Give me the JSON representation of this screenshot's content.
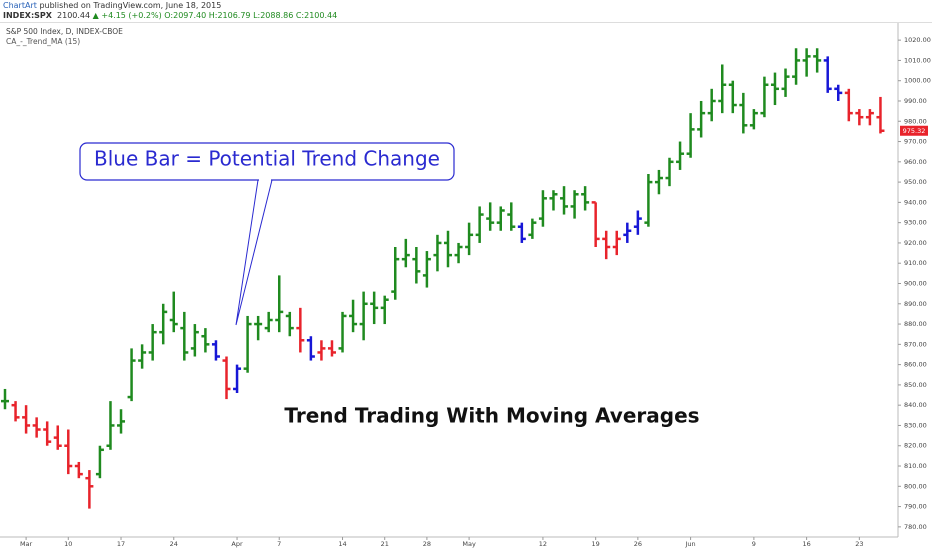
{
  "header": {
    "author": "ChartArt",
    "published": "published on TradingView.com, June 18, 2015",
    "symbol": "INDEX:SPX",
    "last": "2100.44",
    "change": "▲ +4.15 (+0.2%)",
    "ohlc": "O:2097.40 H:2106.79 L:2088.86 C:2100.44"
  },
  "chart_data": {
    "type": "ohlc",
    "subtitle": "S&P 500 Index, D, INDEX-CBOE",
    "indicator": "CA_-_Trend_MA (15)",
    "callout": "Blue Bar = Potential Trend Change",
    "annotation": "Trend Trading With Moving Averages",
    "categories": [
      null,
      null,
      "Mar",
      null,
      null,
      null,
      "10",
      null,
      null,
      null,
      null,
      "17",
      null,
      null,
      null,
      null,
      "24",
      null,
      null,
      null,
      null,
      null,
      "Apr",
      null,
      null,
      null,
      "7",
      null,
      null,
      null,
      null,
      null,
      "14",
      null,
      null,
      null,
      "21",
      null,
      null,
      null,
      "28",
      null,
      null,
      null,
      "May",
      null,
      null,
      null,
      null,
      null,
      null,
      "12",
      null,
      null,
      null,
      null,
      "19",
      null,
      null,
      null,
      "26",
      null,
      null,
      null,
      null,
      "Jun",
      null,
      null,
      null,
      null,
      null,
      "9",
      null,
      null,
      null,
      null,
      "16",
      null,
      null,
      null,
      null,
      "23",
      null,
      null
    ],
    "open": [
      842,
      840,
      834,
      830,
      828,
      824,
      820,
      810,
      804,
      806,
      820,
      830,
      844,
      862,
      866,
      876,
      882,
      878,
      868,
      874,
      870,
      862,
      848,
      858,
      880,
      878,
      882,
      884,
      878,
      872,
      866,
      868,
      868,
      884,
      880,
      890,
      888,
      896,
      912,
      912,
      904,
      914,
      920,
      914,
      918,
      924,
      932,
      930,
      934,
      928,
      924,
      932,
      942,
      942,
      938,
      944,
      940,
      922,
      918,
      924,
      928,
      930,
      950,
      952,
      960,
      964,
      976,
      984,
      990,
      998,
      988,
      978,
      984,
      998,
      996,
      1002,
      1010,
      1012,
      1010,
      996,
      994,
      984,
      982,
      982
    ],
    "high": [
      848,
      842,
      840,
      834,
      832,
      830,
      828,
      812,
      808,
      820,
      842,
      838,
      868,
      870,
      880,
      890,
      896,
      886,
      880,
      878,
      872,
      864,
      860,
      884,
      884,
      886,
      904,
      886,
      888,
      874,
      872,
      872,
      886,
      892,
      896,
      896,
      894,
      918,
      922,
      918,
      916,
      924,
      926,
      920,
      930,
      938,
      940,
      938,
      940,
      930,
      932,
      946,
      946,
      948,
      946,
      948,
      940,
      926,
      926,
      930,
      936,
      954,
      956,
      962,
      970,
      984,
      990,
      996,
      1008,
      1000,
      994,
      986,
      1002,
      1004,
      1006,
      1016,
      1016,
      1016,
      1012,
      998,
      996,
      986,
      986,
      992
    ],
    "low": [
      838,
      832,
      826,
      824,
      820,
      818,
      806,
      804,
      789,
      804,
      818,
      826,
      842,
      858,
      862,
      870,
      876,
      862,
      864,
      866,
      862,
      843,
      846,
      856,
      872,
      876,
      876,
      874,
      866,
      862,
      862,
      864,
      866,
      876,
      872,
      880,
      880,
      892,
      908,
      900,
      898,
      906,
      908,
      910,
      914,
      920,
      926,
      926,
      926,
      920,
      922,
      928,
      936,
      934,
      932,
      936,
      918,
      912,
      914,
      920,
      924,
      928,
      944,
      948,
      956,
      962,
      972,
      980,
      984,
      984,
      974,
      976,
      982,
      988,
      992,
      998,
      1002,
      1004,
      994,
      990,
      980,
      978,
      978,
      974
    ],
    "close": [
      842,
      834,
      830,
      828,
      822,
      820,
      810,
      806,
      800,
      818,
      830,
      832,
      862,
      866,
      876,
      886,
      880,
      866,
      876,
      870,
      864,
      848,
      858,
      880,
      880,
      882,
      886,
      878,
      872,
      864,
      868,
      866,
      884,
      880,
      890,
      888,
      892,
      912,
      914,
      906,
      912,
      920,
      914,
      918,
      924,
      934,
      930,
      936,
      928,
      922,
      930,
      942,
      944,
      938,
      944,
      940,
      922,
      918,
      922,
      926,
      932,
      950,
      952,
      960,
      964,
      976,
      984,
      990,
      998,
      988,
      978,
      984,
      998,
      996,
      1002,
      1010,
      1012,
      1010,
      996,
      994,
      984,
      982,
      984,
      975.32
    ],
    "colors": [
      "#1f8a1f",
      "#e8232b",
      "#e8232b",
      "#e8232b",
      "#e8232b",
      "#e8232b",
      "#e8232b",
      "#e8232b",
      "#e8232b",
      "#1f8a1f",
      "#1f8a1f",
      "#1f8a1f",
      "#1f8a1f",
      "#1f8a1f",
      "#1f8a1f",
      "#1f8a1f",
      "#1f8a1f",
      "#1f8a1f",
      "#1f8a1f",
      "#1f8a1f",
      "#1717d6",
      "#e8232b",
      "#1717d6",
      "#1f8a1f",
      "#1f8a1f",
      "#1f8a1f",
      "#1f8a1f",
      "#1f8a1f",
      "#e8232b",
      "#1717d6",
      "#e8232b",
      "#e8232b",
      "#1f8a1f",
      "#1f8a1f",
      "#1f8a1f",
      "#1f8a1f",
      "#1f8a1f",
      "#1f8a1f",
      "#1f8a1f",
      "#1f8a1f",
      "#1f8a1f",
      "#1f8a1f",
      "#1f8a1f",
      "#1f8a1f",
      "#1f8a1f",
      "#1f8a1f",
      "#1f8a1f",
      "#1f8a1f",
      "#1f8a1f",
      "#1717d6",
      "#1f8a1f",
      "#1f8a1f",
      "#1f8a1f",
      "#1f8a1f",
      "#1f8a1f",
      "#1f8a1f",
      "#e8232b",
      "#e8232b",
      "#e8232b",
      "#1717d6",
      "#1717d6",
      "#1f8a1f",
      "#1f8a1f",
      "#1f8a1f",
      "#1f8a1f",
      "#1f8a1f",
      "#1f8a1f",
      "#1f8a1f",
      "#1f8a1f",
      "#1f8a1f",
      "#1f8a1f",
      "#1f8a1f",
      "#1f8a1f",
      "#1f8a1f",
      "#1f8a1f",
      "#1f8a1f",
      "#1f8a1f",
      "#1f8a1f",
      "#1717d6",
      "#1717d6",
      "#e8232b",
      "#e8232b",
      "#e8232b",
      "#e8232b"
    ],
    "ylim": [
      775,
      1025
    ],
    "yticks": [
      {
        "value": 780,
        "label": "780.00"
      },
      {
        "value": 790,
        "label": "790.00"
      },
      {
        "value": 800,
        "label": "800.00"
      },
      {
        "value": 810,
        "label": "810.00"
      },
      {
        "value": 820,
        "label": "820.00"
      },
      {
        "value": 830,
        "label": "830.00"
      },
      {
        "value": 840,
        "label": "840.00"
      },
      {
        "value": 850,
        "label": "850.00"
      },
      {
        "value": 860,
        "label": "860.00"
      },
      {
        "value": 870,
        "label": "870.00"
      },
      {
        "value": 880,
        "label": "880.00"
      },
      {
        "value": 890,
        "label": "890.00"
      },
      {
        "value": 900,
        "label": "900.00"
      },
      {
        "value": 910,
        "label": "910.00"
      },
      {
        "value": 920,
        "label": "920.00"
      },
      {
        "value": 930,
        "label": "930.00"
      },
      {
        "value": 940,
        "label": "940.00"
      },
      {
        "value": 950,
        "label": "950.00"
      },
      {
        "value": 960,
        "label": "960.00"
      },
      {
        "value": 970,
        "label": "970.00"
      },
      {
        "value": 980,
        "label": "980.00"
      },
      {
        "value": 990,
        "label": "990.00"
      },
      {
        "value": 1000,
        "label": "1000.00"
      },
      {
        "value": 1010,
        "label": "1010.00"
      },
      {
        "value": 1020,
        "label": "1020.00"
      }
    ],
    "grid": false
  }
}
